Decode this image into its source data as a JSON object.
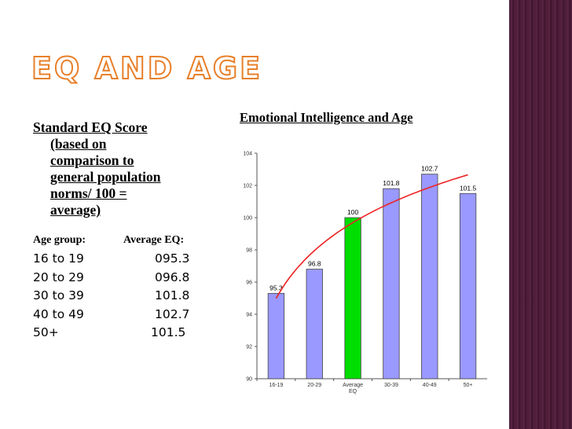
{
  "title": "EQ AND AGE",
  "left_panel": {
    "subhead_first": "Standard EQ Score",
    "subhead_lines": [
      "(based on",
      "comparison to",
      "general population",
      "norms/ 100 =",
      "average)"
    ],
    "col_age": "Age group:",
    "col_eq": "Average EQ:",
    "rows": [
      {
        "age": "16 to 19",
        "eq": "095.3"
      },
      {
        "age": "20 to 29",
        "eq": "096.8"
      },
      {
        "age": "30 to 39",
        "eq": "101.8"
      },
      {
        "age": "40 to 49",
        "eq": "102.7"
      },
      {
        "age": "50+",
        "eq": "101.5"
      }
    ]
  },
  "colors": {
    "bar": "#9999ff",
    "highlight_bar": "#00dd00",
    "trend": "#ee2222",
    "band": "#4a1b36",
    "title_outline": "#e8802a"
  },
  "chart_data": {
    "type": "bar",
    "title": "Emotional Intelligence and Age",
    "categories": [
      "16-19",
      "20-29",
      "Average EQ",
      "30-39",
      "40-49",
      "50+"
    ],
    "values": [
      95.3,
      96.8,
      100,
      101.8,
      102.7,
      101.5
    ],
    "data_labels": [
      "95.3",
      "96.8",
      "100",
      "101.8",
      "102.7",
      "101.5"
    ],
    "highlight_category": "Average EQ",
    "ylim": [
      90,
      104
    ],
    "yticks": [
      90,
      92,
      94,
      96,
      98,
      100,
      102,
      104
    ],
    "trendline": "logarithmic",
    "grid": false,
    "legend": "none"
  }
}
